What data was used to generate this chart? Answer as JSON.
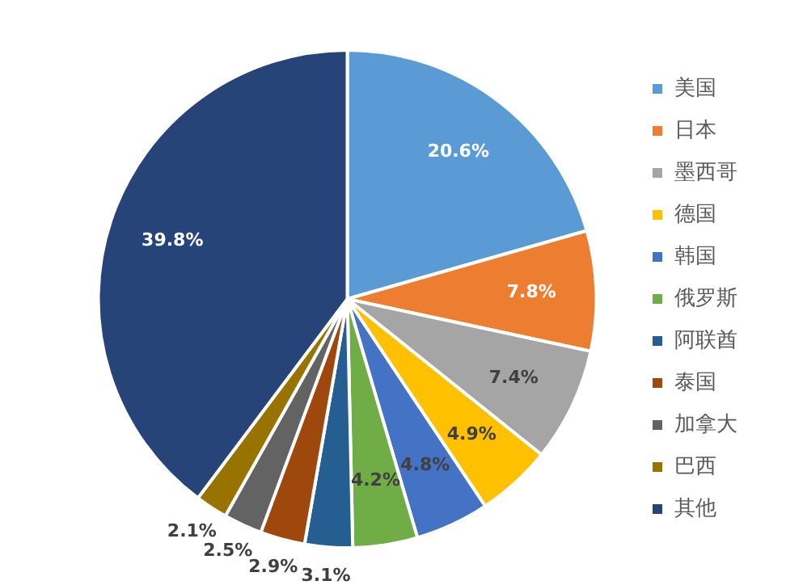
{
  "chart_data": {
    "type": "pie",
    "categories": [
      "美国",
      "日本",
      "墨西哥",
      "德国",
      "韩国",
      "俄罗斯",
      "阿联酋",
      "泰国",
      "加拿大",
      "巴西",
      "其他"
    ],
    "values": [
      20.6,
      7.8,
      7.4,
      4.9,
      4.8,
      4.2,
      3.1,
      2.9,
      2.5,
      2.1,
      39.8
    ],
    "colors": [
      "#5b9bd5",
      "#ed7d31",
      "#a5a5a5",
      "#ffc000",
      "#4472c4",
      "#70ad47",
      "#255e91",
      "#9e480e",
      "#636363",
      "#997300",
      "#264478"
    ],
    "value_labels": [
      "20.6%",
      "7.8%",
      "7.4%",
      "4.9%",
      "4.8%",
      "4.2%",
      "3.1%",
      "2.9%",
      "2.5%",
      "2.1%",
      "39.8%"
    ],
    "legend": "right"
  }
}
